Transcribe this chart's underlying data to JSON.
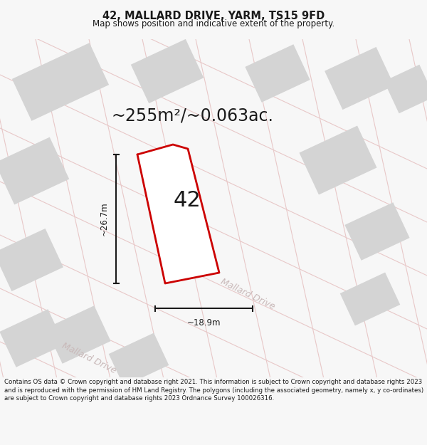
{
  "title_line1": "42, MALLARD DRIVE, YARM, TS15 9FD",
  "title_line2": "Map shows position and indicative extent of the property.",
  "area_text": "~255m²/~0.063ac.",
  "label_42": "42",
  "dim_width": "~18.9m",
  "dim_height": "~26.7m",
  "road_label1": "Mallard Drive",
  "road_label2": "Mallard Drive",
  "footer_text": "Contains OS data © Crown copyright and database right 2021. This information is subject to Crown copyright and database rights 2023 and is reproduced with the permission of HM Land Registry. The polygons (including the associated geometry, namely x, y co-ordinates) are subject to Crown copyright and database rights 2023 Ordnance Survey 100026316.",
  "bg_color": "#f7f7f7",
  "map_bg": "#eeecec",
  "plot_outline_color": "#cc0000",
  "plot_fill_color": "#ffffff",
  "road_line_color": "#e8c8c8",
  "block_color": "#d4d4d4",
  "dim_line_color": "#1a1a1a",
  "text_color": "#1a1a1a",
  "road_text_color": "#c8b8b8"
}
